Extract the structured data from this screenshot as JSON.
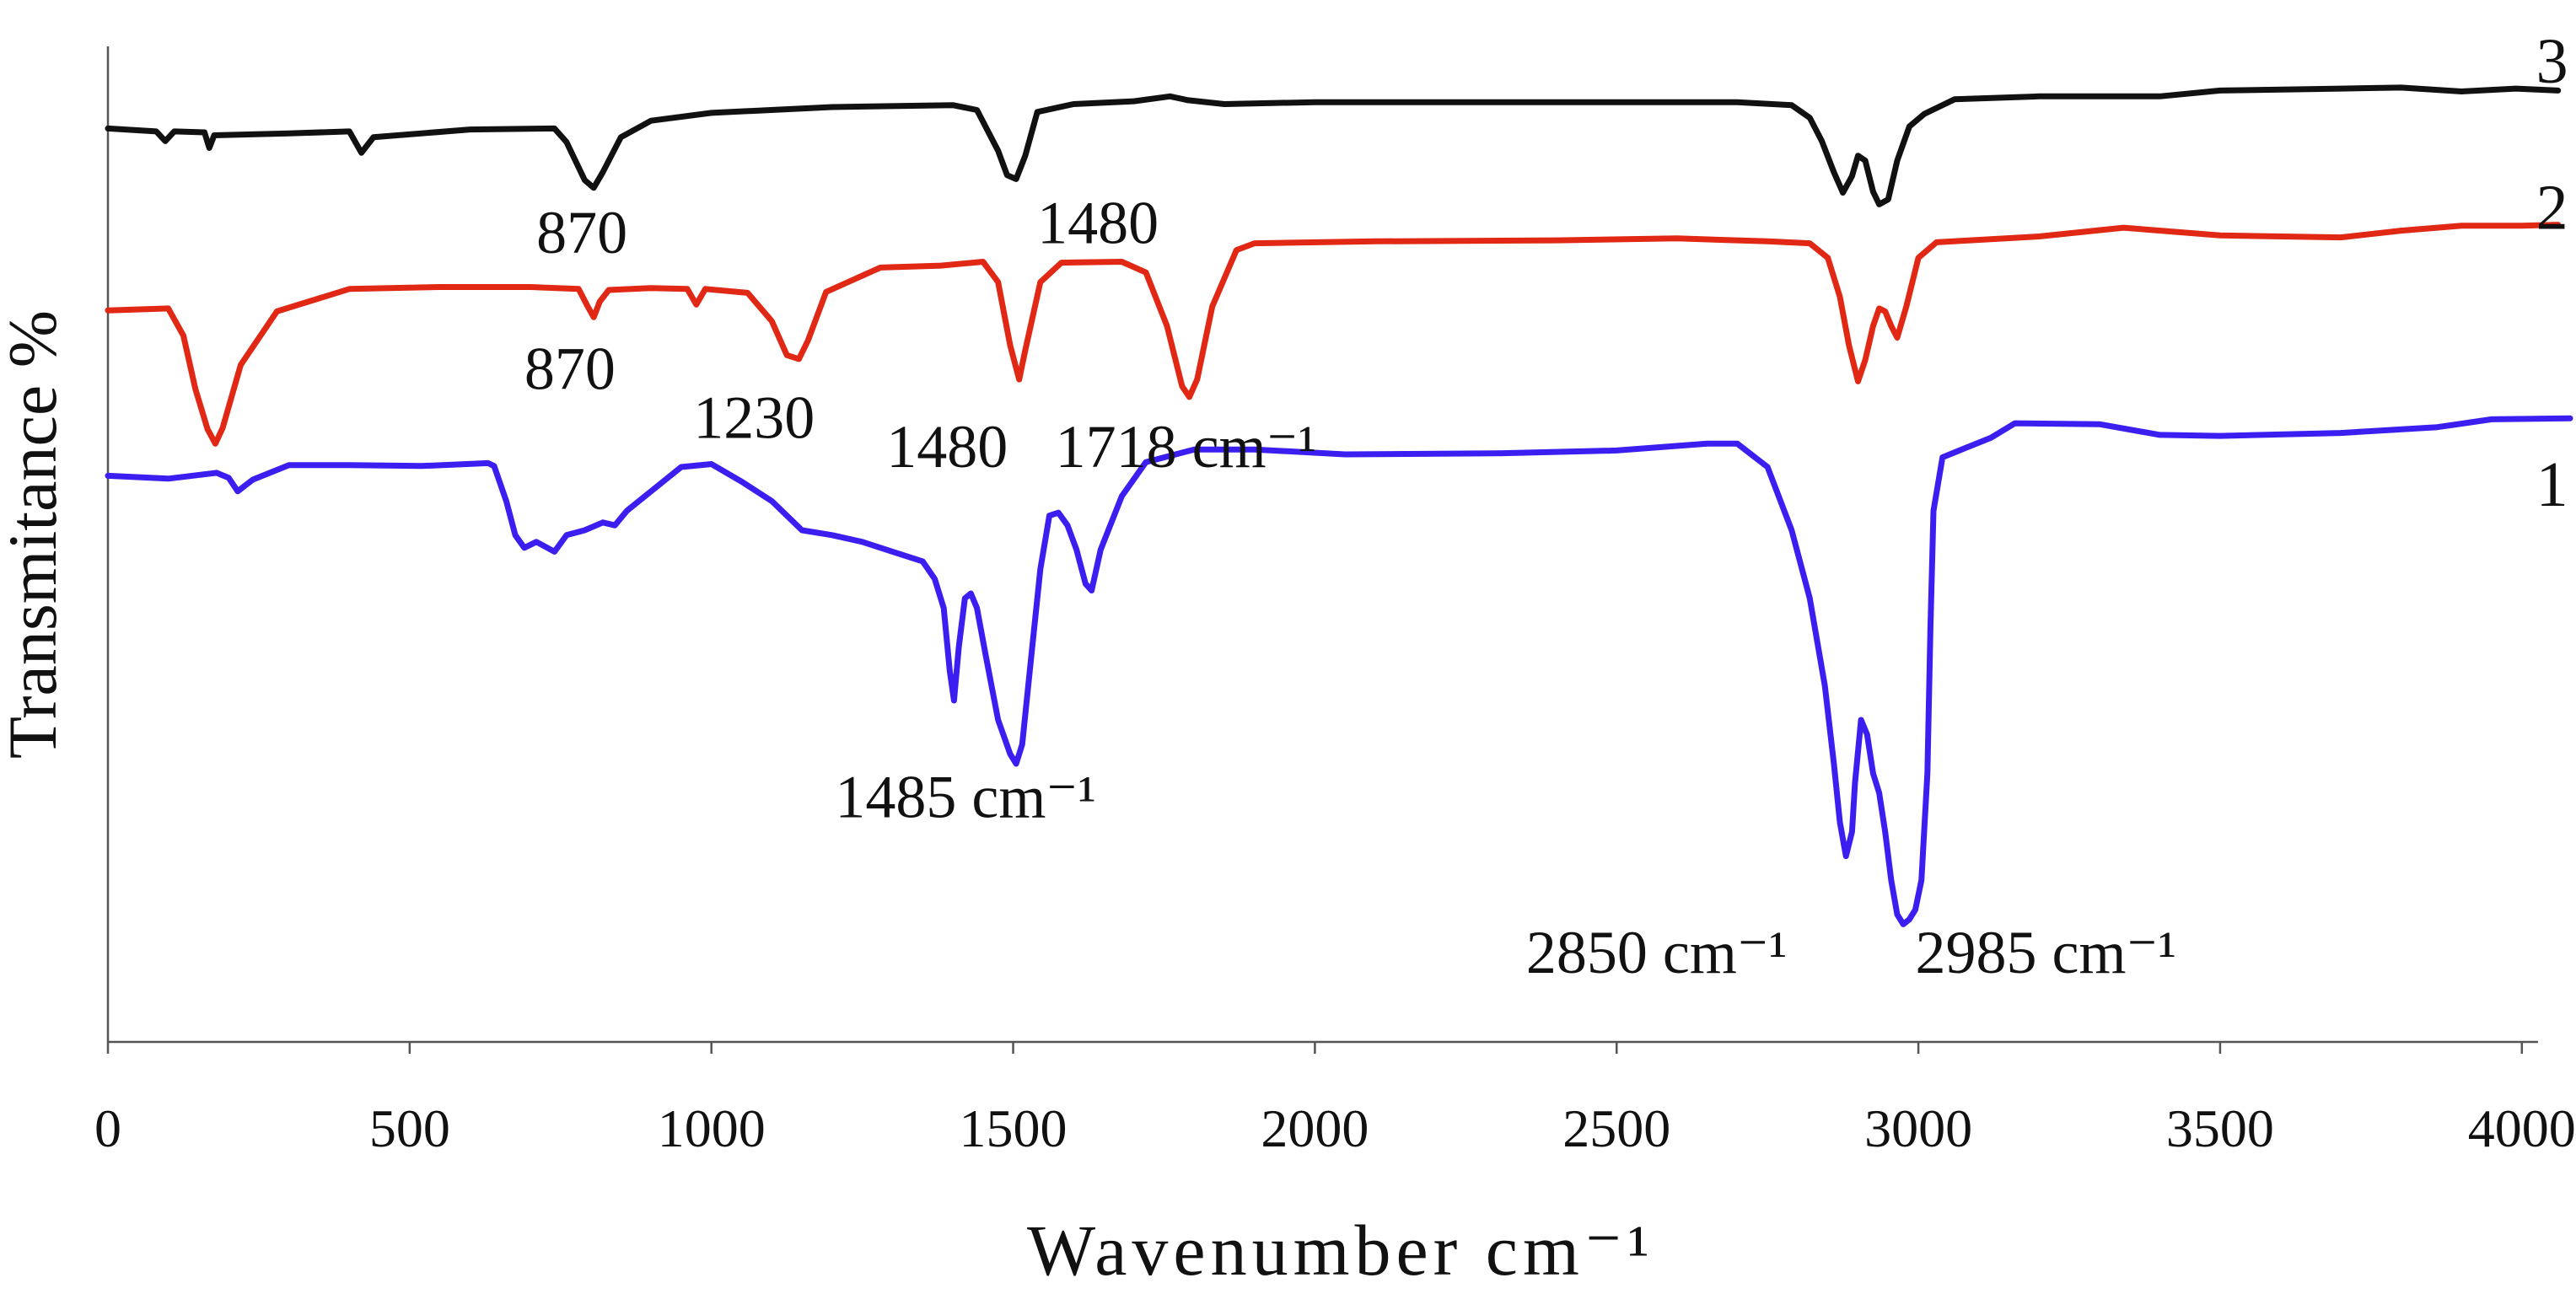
{
  "chart_data": {
    "type": "line",
    "title": "",
    "xlabel": "Wavenumber cm⁻¹",
    "ylabel": "Transmitance %",
    "xlim": [
      0,
      4080
    ],
    "ylim": [
      0,
      100
    ],
    "x_ticks": [
      "0",
      "500",
      "1000",
      "1500",
      "2000",
      "2500",
      "3000",
      "3500",
      "4000"
    ],
    "grid": false,
    "series": [
      {
        "name": "3",
        "color": "#111111",
        "points": [
          [
            0,
            91.3
          ],
          [
            80,
            91.0
          ],
          [
            95,
            90.0
          ],
          [
            110,
            91.0
          ],
          [
            160,
            90.9
          ],
          [
            168,
            89.3
          ],
          [
            176,
            90.6
          ],
          [
            300,
            90.8
          ],
          [
            400,
            91.0
          ],
          [
            420,
            88.8
          ],
          [
            440,
            90.4
          ],
          [
            600,
            91.2
          ],
          [
            740,
            91.3
          ],
          [
            760,
            89.9
          ],
          [
            790,
            86.0
          ],
          [
            805,
            85.2
          ],
          [
            820,
            86.8
          ],
          [
            850,
            90.4
          ],
          [
            900,
            92.1
          ],
          [
            1000,
            92.9
          ],
          [
            1200,
            93.5
          ],
          [
            1400,
            93.7
          ],
          [
            1440,
            93.2
          ],
          [
            1475,
            89.0
          ],
          [
            1490,
            86.5
          ],
          [
            1505,
            86.1
          ],
          [
            1520,
            88.5
          ],
          [
            1540,
            93.0
          ],
          [
            1600,
            93.8
          ],
          [
            1700,
            94.1
          ],
          [
            1760,
            94.6
          ],
          [
            1790,
            94.2
          ],
          [
            1850,
            93.8
          ],
          [
            2000,
            94.0
          ],
          [
            2400,
            94.0
          ],
          [
            2700,
            94.0
          ],
          [
            2790,
            93.7
          ],
          [
            2820,
            92.4
          ],
          [
            2840,
            90.0
          ],
          [
            2860,
            86.8
          ],
          [
            2875,
            84.7
          ],
          [
            2890,
            86.4
          ],
          [
            2900,
            88.5
          ],
          [
            2912,
            88.0
          ],
          [
            2925,
            84.8
          ],
          [
            2935,
            83.5
          ],
          [
            2950,
            84.0
          ],
          [
            2965,
            88.0
          ],
          [
            2985,
            91.5
          ],
          [
            3010,
            92.8
          ],
          [
            3060,
            94.3
          ],
          [
            3200,
            94.6
          ],
          [
            3400,
            94.6
          ],
          [
            3500,
            95.2
          ],
          [
            3700,
            95.4
          ],
          [
            3800,
            95.5
          ],
          [
            3900,
            95.1
          ],
          [
            3990,
            95.4
          ],
          [
            4060,
            95.2
          ]
        ]
      },
      {
        "name": "2",
        "color": "#e02815",
        "points": [
          [
            0,
            72.6
          ],
          [
            100,
            72.8
          ],
          [
            125,
            70.0
          ],
          [
            145,
            64.5
          ],
          [
            165,
            60.4
          ],
          [
            178,
            58.9
          ],
          [
            190,
            60.5
          ],
          [
            220,
            67.0
          ],
          [
            280,
            72.5
          ],
          [
            400,
            74.8
          ],
          [
            550,
            75.0
          ],
          [
            700,
            75.0
          ],
          [
            780,
            74.8
          ],
          [
            795,
            73.0
          ],
          [
            805,
            71.9
          ],
          [
            815,
            73.5
          ],
          [
            830,
            74.7
          ],
          [
            900,
            74.9
          ],
          [
            960,
            74.8
          ],
          [
            975,
            73.2
          ],
          [
            990,
            74.8
          ],
          [
            1060,
            74.4
          ],
          [
            1100,
            71.5
          ],
          [
            1125,
            68.0
          ],
          [
            1145,
            67.6
          ],
          [
            1160,
            69.5
          ],
          [
            1190,
            74.5
          ],
          [
            1280,
            77.0
          ],
          [
            1380,
            77.2
          ],
          [
            1450,
            77.6
          ],
          [
            1475,
            75.5
          ],
          [
            1495,
            69.0
          ],
          [
            1510,
            65.5
          ],
          [
            1520,
            68.5
          ],
          [
            1545,
            75.5
          ],
          [
            1580,
            77.5
          ],
          [
            1680,
            77.6
          ],
          [
            1720,
            76.5
          ],
          [
            1755,
            71.0
          ],
          [
            1780,
            64.8
          ],
          [
            1792,
            63.7
          ],
          [
            1805,
            65.5
          ],
          [
            1830,
            73.0
          ],
          [
            1870,
            78.8
          ],
          [
            1900,
            79.5
          ],
          [
            2100,
            79.7
          ],
          [
            2400,
            79.8
          ],
          [
            2600,
            80.0
          ],
          [
            2750,
            79.7
          ],
          [
            2820,
            79.5
          ],
          [
            2850,
            78.0
          ],
          [
            2870,
            74.0
          ],
          [
            2885,
            69.0
          ],
          [
            2900,
            65.3
          ],
          [
            2912,
            67.5
          ],
          [
            2925,
            71.0
          ],
          [
            2935,
            72.8
          ],
          [
            2945,
            72.5
          ],
          [
            2955,
            71.0
          ],
          [
            2965,
            69.8
          ],
          [
            2980,
            73.0
          ],
          [
            3000,
            78.0
          ],
          [
            3030,
            79.6
          ],
          [
            3200,
            80.2
          ],
          [
            3340,
            81.1
          ],
          [
            3500,
            80.3
          ],
          [
            3700,
            80.1
          ],
          [
            3800,
            80.8
          ],
          [
            3900,
            81.3
          ],
          [
            4000,
            81.3
          ],
          [
            4060,
            81.4
          ]
        ]
      },
      {
        "name": "1",
        "color": "#3b1ef0",
        "points": [
          [
            0,
            55.6
          ],
          [
            100,
            55.3
          ],
          [
            180,
            55.9
          ],
          [
            200,
            55.4
          ],
          [
            215,
            54.0
          ],
          [
            240,
            55.2
          ],
          [
            300,
            56.7
          ],
          [
            400,
            56.7
          ],
          [
            520,
            56.6
          ],
          [
            630,
            56.9
          ],
          [
            640,
            56.6
          ],
          [
            660,
            53.0
          ],
          [
            675,
            49.5
          ],
          [
            690,
            48.2
          ],
          [
            710,
            48.8
          ],
          [
            740,
            47.8
          ],
          [
            760,
            49.5
          ],
          [
            790,
            50.0
          ],
          [
            820,
            50.8
          ],
          [
            840,
            50.5
          ],
          [
            860,
            52.0
          ],
          [
            900,
            54.0
          ],
          [
            950,
            56.5
          ],
          [
            1000,
            56.8
          ],
          [
            1050,
            55.0
          ],
          [
            1100,
            53.0
          ],
          [
            1150,
            50.0
          ],
          [
            1200,
            49.5
          ],
          [
            1250,
            48.8
          ],
          [
            1300,
            47.8
          ],
          [
            1350,
            46.8
          ],
          [
            1370,
            45.0
          ],
          [
            1385,
            42.0
          ],
          [
            1395,
            35.5
          ],
          [
            1402,
            32.5
          ],
          [
            1410,
            38.0
          ],
          [
            1420,
            43.0
          ],
          [
            1430,
            43.5
          ],
          [
            1440,
            42.0
          ],
          [
            1455,
            37.0
          ],
          [
            1475,
            30.5
          ],
          [
            1495,
            27.0
          ],
          [
            1505,
            26.0
          ],
          [
            1515,
            28.0
          ],
          [
            1530,
            37.0
          ],
          [
            1545,
            46.0
          ],
          [
            1560,
            51.5
          ],
          [
            1575,
            51.8
          ],
          [
            1590,
            50.5
          ],
          [
            1605,
            48.0
          ],
          [
            1620,
            44.5
          ],
          [
            1630,
            43.8
          ],
          [
            1645,
            48.0
          ],
          [
            1680,
            53.5
          ],
          [
            1720,
            57.0
          ],
          [
            1800,
            58.3
          ],
          [
            1900,
            58.3
          ],
          [
            2050,
            57.8
          ],
          [
            2300,
            57.9
          ],
          [
            2500,
            58.2
          ],
          [
            2650,
            58.9
          ],
          [
            2700,
            58.9
          ],
          [
            2750,
            56.5
          ],
          [
            2790,
            50.0
          ],
          [
            2820,
            43.0
          ],
          [
            2845,
            34.0
          ],
          [
            2860,
            26.0
          ],
          [
            2870,
            20.0
          ],
          [
            2880,
            16.5
          ],
          [
            2890,
            19.0
          ],
          [
            2895,
            24.0
          ],
          [
            2905,
            30.5
          ],
          [
            2915,
            29.0
          ],
          [
            2925,
            25.0
          ],
          [
            2935,
            23.0
          ],
          [
            2945,
            19.0
          ],
          [
            2955,
            14.0
          ],
          [
            2965,
            10.5
          ],
          [
            2975,
            9.5
          ],
          [
            2985,
            10.0
          ],
          [
            2995,
            11.0
          ],
          [
            3005,
            14.0
          ],
          [
            3015,
            25.0
          ],
          [
            3020,
            40.0
          ],
          [
            3025,
            52.0
          ],
          [
            3040,
            57.5
          ],
          [
            3080,
            58.5
          ],
          [
            3120,
            59.5
          ],
          [
            3160,
            61.0
          ],
          [
            3300,
            60.9
          ],
          [
            3400,
            59.8
          ],
          [
            3500,
            59.7
          ],
          [
            3700,
            60.0
          ],
          [
            3860,
            60.6
          ],
          [
            3950,
            61.4
          ],
          [
            4080,
            61.5
          ]
        ]
      }
    ],
    "series_labels": [
      {
        "text": "3",
        "x": 4050,
        "y": 96.0
      },
      {
        "text": "2",
        "x": 4050,
        "y": 81.0
      },
      {
        "text": "1",
        "x": 4050,
        "y": 52.5
      }
    ],
    "annotations": [
      {
        "text": "870",
        "x": 710,
        "y": 78.5
      },
      {
        "text": "1480",
        "x": 1540,
        "y": 79.5
      },
      {
        "text": "870",
        "x": 690,
        "y": 64.5
      },
      {
        "text": "1230",
        "x": 970,
        "y": 59.5
      },
      {
        "text": "1480",
        "x": 1290,
        "y": 56.5
      },
      {
        "text": "1718 cm⁻¹",
        "x": 1570,
        "y": 56.5
      },
      {
        "text": "1485 cm⁻¹",
        "x": 1205,
        "y": 20.5
      },
      {
        "text": "2850 cm⁻¹",
        "x": 2350,
        "y": 4.5
      },
      {
        "text": "2985 cm⁻¹",
        "x": 2995,
        "y": 4.5
      }
    ]
  }
}
